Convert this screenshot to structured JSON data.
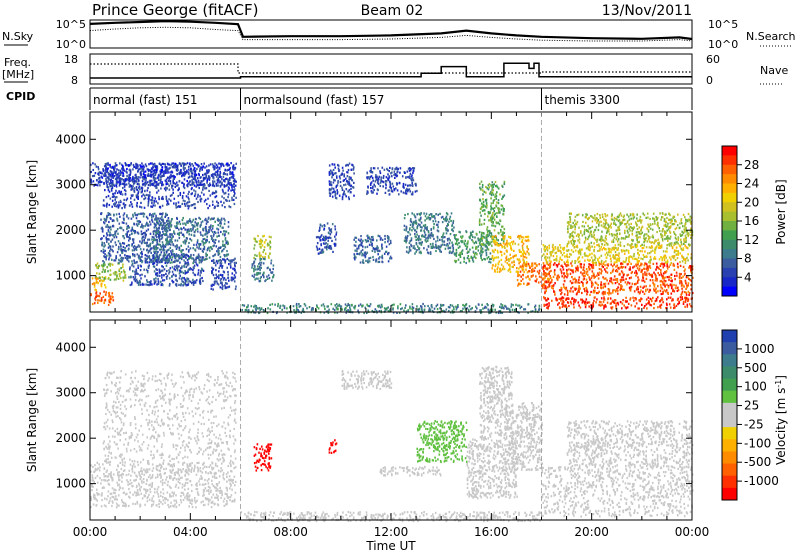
{
  "header": {
    "station": "Prince George (fitACF)",
    "beam": "Beam 02",
    "date": "13/Nov/2011"
  },
  "nsky_panel": {
    "left_label": "N.Sky",
    "left_ticks": [
      "10^5",
      "10^0"
    ],
    "right_label": "N.Search",
    "right_ticks": [
      "10^5",
      "10^0"
    ]
  },
  "freq_panel": {
    "left_label_1": "Freq.",
    "left_label_2": "[MHz]",
    "left_ticks": [
      "18",
      "8"
    ],
    "right_label": "Nave",
    "right_ticks": [
      "60",
      "0"
    ]
  },
  "cpid": {
    "label": "CPID",
    "modes": [
      {
        "name": "normal (fast) 151",
        "start_hour": 0
      },
      {
        "name": "normalsound (fast) 157",
        "start_hour": 6
      },
      {
        "name": "themis 3300",
        "start_hour": 18
      }
    ]
  },
  "power_colorbar": {
    "label": "Power [dB]",
    "ticks": [
      "28",
      "24",
      "20",
      "16",
      "12",
      "8",
      "4"
    ],
    "colors": [
      "#ff0000",
      "#ff3000",
      "#ff6000",
      "#ff8c00",
      "#ffb000",
      "#f0d000",
      "#d0c020",
      "#a8c030",
      "#70b040",
      "#40a050",
      "#3c8c6c",
      "#3c7c8c",
      "#3c5ca0",
      "#2840b0",
      "#1828c8",
      "#0000ff"
    ]
  },
  "velocity_colorbar": {
    "label": "Velocity [m s",
    "label_sup": "-1",
    "label_end": "]",
    "ticks": [
      "1000",
      "500",
      "100",
      "25",
      "-25",
      "-100",
      "-500",
      "-1000"
    ],
    "colors": [
      "#2040b0",
      "#3c5ca0",
      "#3c7c8c",
      "#3c8c6c",
      "#40a050",
      "#60c040",
      "#c8c8c8",
      "#c8c8c8",
      "#f0d000",
      "#ffb000",
      "#ff8c00",
      "#ff6000",
      "#ff3000",
      "#ff0000"
    ]
  },
  "chart_data": [
    {
      "type": "heatmap",
      "name": "Power",
      "ylabel": "Slant Range [km]",
      "yticks": [
        1000,
        2000,
        3000,
        4000
      ],
      "ylim": [
        200,
        4600
      ],
      "xlim": [
        0,
        24
      ],
      "xticks": [
        "00:00",
        "04:00",
        "08:00",
        "12:00",
        "16:00",
        "20:00",
        "00:00"
      ],
      "xtick_hours": [
        0,
        4,
        8,
        12,
        16,
        20,
        24
      ],
      "colorbar_range": [
        0,
        32
      ],
      "regions": [
        {
          "t0": 0.0,
          "t1": 0.9,
          "r0": 380,
          "r1": 700,
          "value": 27
        },
        {
          "t0": 0.0,
          "t1": 0.6,
          "r0": 700,
          "r1": 1000,
          "value": 22
        },
        {
          "t0": 0.2,
          "t1": 1.4,
          "r0": 900,
          "r1": 1300,
          "value": 16
        },
        {
          "t0": 0.4,
          "t1": 3.2,
          "r0": 1300,
          "r1": 2400,
          "value": 7
        },
        {
          "t0": 1.5,
          "t1": 4.5,
          "r0": 800,
          "r1": 1500,
          "value": 6
        },
        {
          "t0": 2.5,
          "t1": 5.5,
          "r0": 1300,
          "r1": 2300,
          "value": 8
        },
        {
          "t0": 4.8,
          "t1": 5.8,
          "r0": 700,
          "r1": 1400,
          "value": 5
        },
        {
          "t0": 0.5,
          "t1": 5.8,
          "r0": 2500,
          "r1": 3500,
          "value": 5
        },
        {
          "t0": 0.0,
          "t1": 5.8,
          "r0": 3000,
          "r1": 3500,
          "value": 4
        },
        {
          "t0": 6.5,
          "t1": 7.2,
          "r0": 1400,
          "r1": 1900,
          "value": 18
        },
        {
          "t0": 6.4,
          "t1": 7.3,
          "r0": 900,
          "r1": 1400,
          "value": 9
        },
        {
          "t0": 9.5,
          "t1": 10.5,
          "r0": 2700,
          "r1": 3500,
          "value": 5
        },
        {
          "t0": 11.0,
          "t1": 13.0,
          "r0": 2800,
          "r1": 3400,
          "value": 5
        },
        {
          "t0": 9.0,
          "t1": 9.8,
          "r0": 1500,
          "r1": 2200,
          "value": 6
        },
        {
          "t0": 10.5,
          "t1": 12.0,
          "r0": 1300,
          "r1": 1900,
          "value": 7
        },
        {
          "t0": 12.5,
          "t1": 14.5,
          "r0": 1500,
          "r1": 2400,
          "value": 9
        },
        {
          "t0": 14.5,
          "t1": 16.0,
          "r0": 1300,
          "r1": 2000,
          "value": 12
        },
        {
          "t0": 15.5,
          "t1": 16.5,
          "r0": 1700,
          "r1": 3100,
          "value": 14
        },
        {
          "t0": 16.0,
          "t1": 17.5,
          "r0": 1100,
          "r1": 1900,
          "value": 22
        },
        {
          "t0": 17.0,
          "t1": 18.3,
          "r0": 800,
          "r1": 1300,
          "value": 26
        },
        {
          "t0": 18.0,
          "t1": 24.0,
          "r0": 600,
          "r1": 1300,
          "value": 28
        },
        {
          "t0": 18.0,
          "t1": 24.0,
          "r0": 300,
          "r1": 550,
          "value": 29
        },
        {
          "t0": 18.0,
          "t1": 24.0,
          "r0": 1300,
          "r1": 1700,
          "value": 20
        },
        {
          "t0": 19.0,
          "t1": 24.0,
          "r0": 1700,
          "r1": 2400,
          "value": 17
        },
        {
          "t0": 6.0,
          "t1": 18.0,
          "r0": 200,
          "r1": 400,
          "value": 10
        }
      ]
    },
    {
      "type": "heatmap",
      "name": "Velocity",
      "ylabel": "Slant Range [km]",
      "yticks": [
        1000,
        2000,
        3000,
        4000
      ],
      "ylim": [
        200,
        4600
      ],
      "xlim": [
        0,
        24
      ],
      "xticks": [
        "00:00",
        "04:00",
        "08:00",
        "12:00",
        "16:00",
        "20:00",
        "00:00"
      ],
      "xtick_hours": [
        0,
        4,
        8,
        12,
        16,
        20,
        24
      ],
      "xlabel": "Time UT",
      "colorbar_range": [
        -1000,
        1000
      ],
      "regions": [
        {
          "t0": 0.0,
          "t1": 5.8,
          "r0": 500,
          "r1": 1500,
          "value": 0
        },
        {
          "t0": 0.5,
          "t1": 5.8,
          "r0": 1500,
          "r1": 3500,
          "value": -60
        },
        {
          "t0": 6.5,
          "t1": 7.2,
          "r0": 1300,
          "r1": 1900,
          "value": -900
        },
        {
          "t0": 9.5,
          "t1": 9.8,
          "r0": 1700,
          "r1": 2000,
          "value": -900
        },
        {
          "t0": 11.5,
          "t1": 14.0,
          "r0": 1200,
          "r1": 1400,
          "value": -60
        },
        {
          "t0": 13.0,
          "t1": 15.0,
          "r0": 1500,
          "r1": 2400,
          "value": 200
        },
        {
          "t0": 15.0,
          "t1": 17.0,
          "r0": 700,
          "r1": 2000,
          "value": 0
        },
        {
          "t0": 15.5,
          "t1": 16.8,
          "r0": 2000,
          "r1": 3600,
          "value": 80
        },
        {
          "t0": 16.5,
          "t1": 18.0,
          "r0": 1300,
          "r1": 2800,
          "value": 0
        },
        {
          "t0": 18.0,
          "t1": 24.0,
          "r0": 300,
          "r1": 1400,
          "value": 0
        },
        {
          "t0": 19.0,
          "t1": 24.0,
          "r0": 1400,
          "r1": 2400,
          "value": 0
        },
        {
          "t0": 10.0,
          "t1": 12.0,
          "r0": 3100,
          "r1": 3500,
          "value": -30
        },
        {
          "t0": 6.0,
          "t1": 18.0,
          "r0": 200,
          "r1": 400,
          "value": -60
        }
      ]
    },
    {
      "type": "line",
      "name": "N.Sky / N.Search",
      "xlim": [
        0,
        24
      ],
      "x": [
        0,
        1,
        2,
        3,
        4,
        5,
        5.9,
        6.1,
        8,
        10,
        12,
        14,
        15,
        16,
        17,
        18,
        20,
        22,
        23.5,
        24
      ],
      "series": [
        {
          "name": "N.Sky",
          "values": [
            0.86,
            0.9,
            0.93,
            0.96,
            0.94,
            0.9,
            0.85,
            0.4,
            0.42,
            0.42,
            0.45,
            0.52,
            0.62,
            0.52,
            0.45,
            0.4,
            0.35,
            0.33,
            0.38,
            0.32
          ]
        },
        {
          "name": "N.Search",
          "values": [
            0.62,
            0.68,
            0.72,
            0.74,
            0.72,
            0.66,
            0.62,
            0.3,
            0.3,
            0.3,
            0.32,
            0.38,
            0.45,
            0.38,
            0.32,
            0.28,
            0.25,
            0.25,
            0.3,
            0.25
          ]
        }
      ]
    },
    {
      "type": "line",
      "name": "Freq / Nave",
      "xlim": [
        0,
        24
      ],
      "series": [
        {
          "name": "Freq",
          "points": [
            [
              0,
              10
            ],
            [
              6,
              10
            ],
            [
              6,
              10.4
            ],
            [
              13.2,
              10.4
            ],
            [
              13.2,
              11.6
            ],
            [
              14.0,
              11.6
            ],
            [
              14.0,
              13.8
            ],
            [
              15.0,
              13.8
            ],
            [
              15.0,
              10.4
            ],
            [
              16.5,
              10.4
            ],
            [
              16.5,
              14.9
            ],
            [
              17.5,
              14.9
            ],
            [
              17.5,
              13.2
            ],
            [
              17.7,
              13.2
            ],
            [
              17.7,
              14.9
            ],
            [
              17.9,
              14.9
            ],
            [
              17.9,
              10.4
            ],
            [
              24,
              10.4
            ]
          ]
        },
        {
          "name": "Nave",
          "points": [
            [
              0,
              40
            ],
            [
              5.9,
              40
            ],
            [
              5.9,
              22
            ],
            [
              18,
              22
            ],
            [
              18,
              24
            ],
            [
              24,
              24
            ]
          ]
        }
      ]
    }
  ]
}
